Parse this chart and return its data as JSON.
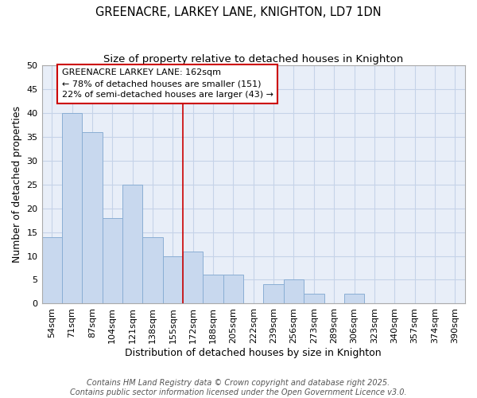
{
  "title": "GREENACRE, LARKEY LANE, KNIGHTON, LD7 1DN",
  "subtitle": "Size of property relative to detached houses in Knighton",
  "xlabel": "Distribution of detached houses by size in Knighton",
  "ylabel": "Number of detached properties",
  "categories": [
    "54sqm",
    "71sqm",
    "87sqm",
    "104sqm",
    "121sqm",
    "138sqm",
    "155sqm",
    "172sqm",
    "188sqm",
    "205sqm",
    "222sqm",
    "239sqm",
    "256sqm",
    "273sqm",
    "289sqm",
    "306sqm",
    "323sqm",
    "340sqm",
    "357sqm",
    "374sqm",
    "390sqm"
  ],
  "values": [
    14,
    40,
    36,
    18,
    25,
    14,
    10,
    11,
    6,
    6,
    0,
    4,
    5,
    2,
    0,
    2,
    0,
    0,
    0,
    0,
    0
  ],
  "bar_color": "#c8d8ee",
  "bar_edge_color": "#8aaed4",
  "grid_color": "#c5d3e8",
  "background_color": "#e8eef8",
  "red_line_x": 7,
  "annotation_line1": "GREENACRE LARKEY LANE: 162sqm",
  "annotation_line2": "← 78% of detached houses are smaller (151)",
  "annotation_line3": "22% of semi-detached houses are larger (43) →",
  "annotation_box_edge": "#cc0000",
  "red_line_color": "#cc0000",
  "ylim": [
    0,
    50
  ],
  "yticks": [
    0,
    5,
    10,
    15,
    20,
    25,
    30,
    35,
    40,
    45,
    50
  ],
  "footer_text": "Contains HM Land Registry data © Crown copyright and database right 2025.\nContains public sector information licensed under the Open Government Licence v3.0.",
  "title_fontsize": 10.5,
  "subtitle_fontsize": 9.5,
  "axis_label_fontsize": 9,
  "tick_fontsize": 8,
  "annotation_fontsize": 8,
  "footer_fontsize": 7
}
